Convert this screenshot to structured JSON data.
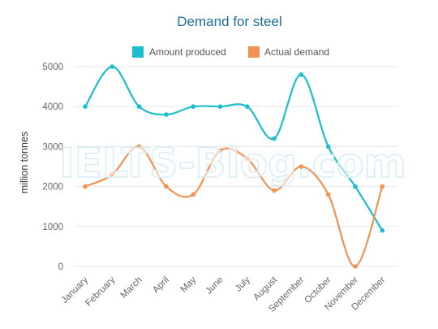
{
  "chart_data": {
    "type": "line",
    "title": "Demand for steel",
    "ylabel": "million tonnes",
    "xlabel": "",
    "categories": [
      "January",
      "February",
      "March",
      "April",
      "May",
      "June",
      "July",
      "August",
      "September",
      "October",
      "November",
      "December"
    ],
    "series": [
      {
        "name": "Amount produced",
        "color": "#1bbfcc",
        "values": [
          4000,
          5000,
          4000,
          3800,
          4000,
          4000,
          4000,
          3200,
          4800,
          3000,
          2000,
          900
        ]
      },
      {
        "name": "Actual demand",
        "color": "#ef9254",
        "values": [
          2000,
          2300,
          3000,
          2000,
          1800,
          2900,
          2700,
          1900,
          2500,
          1800,
          0,
          2000
        ]
      }
    ],
    "ylim": [
      0,
      5000
    ],
    "yticks": [
      0,
      1000,
      2000,
      3000,
      4000,
      5000
    ],
    "grid": true,
    "legend_position": "top",
    "watermark": "IELTS-Blog.com",
    "smooth": true
  }
}
